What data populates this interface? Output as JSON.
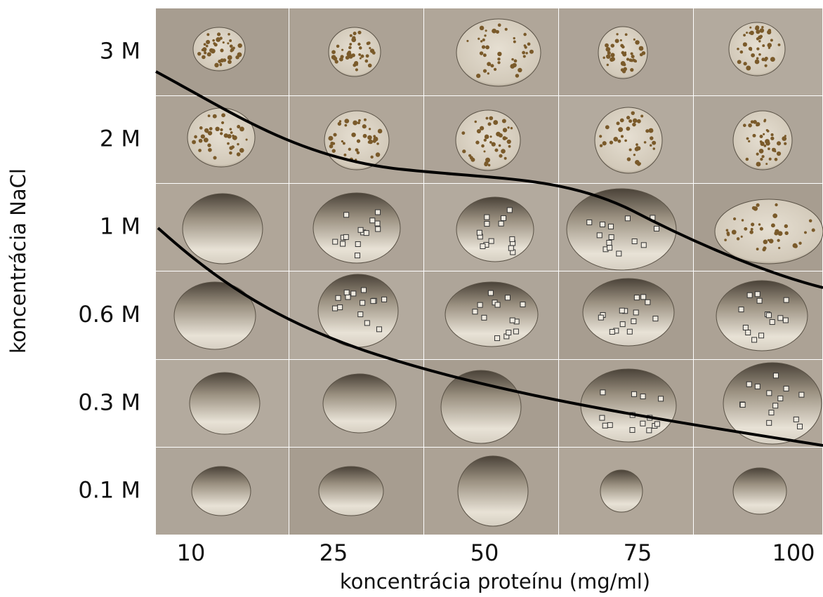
{
  "y_title": "koncentrácia NaCl",
  "x_title": "koncentrácia proteínu (mg/ml)",
  "y_labels": [
    "3 M",
    "2 M",
    "1 M",
    "0.6 M",
    "0.3 M",
    "0.1 M"
  ],
  "x_labels": [
    "10",
    "25",
    "50",
    "75",
    "100"
  ]
}
